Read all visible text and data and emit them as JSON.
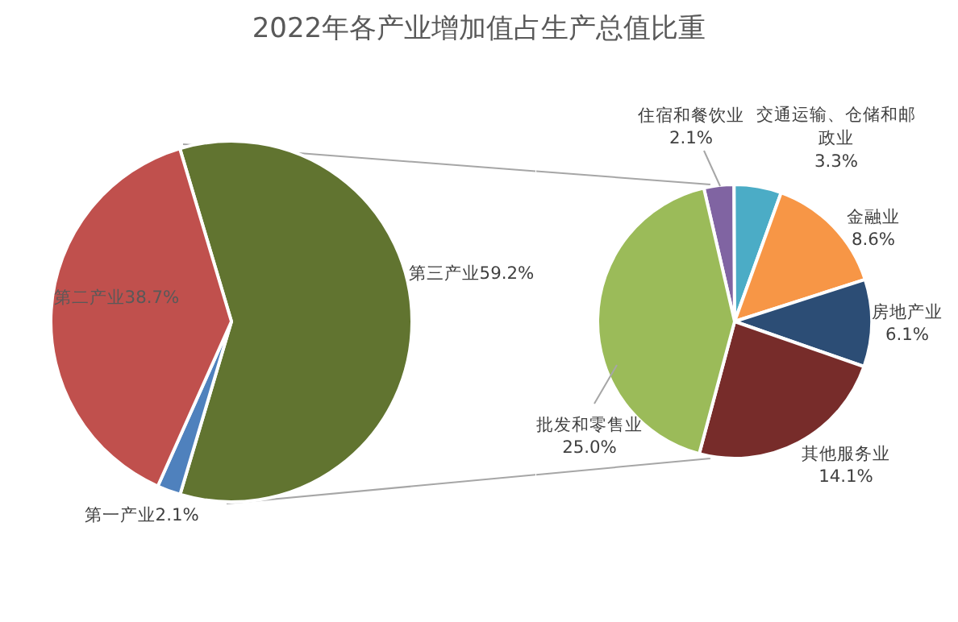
{
  "chart_data": [
    {
      "type": "pie",
      "title": "2022年各产业增加值占生产总值比重",
      "categories": [
        "第三产业",
        "第一产业",
        "第二产业"
      ],
      "values": [
        59.2,
        2.1,
        38.7
      ],
      "colors": [
        "#617430",
        "#4f81bd",
        "#c0504d"
      ],
      "value_labels": [
        "59.2%",
        "2.1%",
        "38.7%"
      ]
    },
    {
      "type": "pie",
      "categories": [
        "住宿和餐饮业",
        "交通运输、仓储和邮政业",
        "金融业",
        "房地产业",
        "其他服务业",
        "批发和零售业"
      ],
      "values": [
        2.1,
        3.3,
        8.6,
        6.1,
        14.1,
        25.0
      ],
      "colors": [
        "#8064a2",
        "#4bacc6",
        "#f79646",
        "#2c4d75",
        "#772c2a",
        "#9bbb59"
      ],
      "value_labels": [
        "2.1%",
        "3.3%",
        "8.6%",
        "6.1%",
        "14.1%",
        "25.0%"
      ]
    }
  ]
}
